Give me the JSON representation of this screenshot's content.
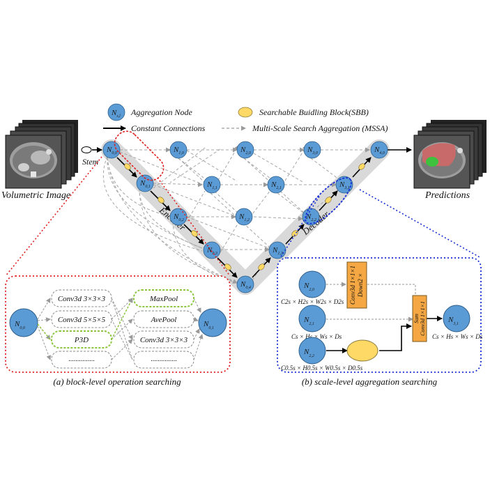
{
  "legend": {
    "aggregation_node": "Aggregation Node",
    "aggregation_node_symbol": "N",
    "aggregation_node_sub": "s,l",
    "sbb": "Searchable Buidling Block(SBB)",
    "constant": "Constant Connections",
    "mssa": "Multi-Scale Search Aggregation (MSSA)"
  },
  "labels": {
    "volumetric_image": "Volumetric Image",
    "predictions": "Predictions",
    "stem": "Stem",
    "encoder": "Encoder",
    "decoder": "Decoder"
  },
  "main_nodes": [
    {
      "id": "n00",
      "sub": "0,0"
    },
    {
      "id": "n01",
      "sub": "0,1"
    },
    {
      "id": "n02",
      "sub": "0,2"
    },
    {
      "id": "n03",
      "sub": "0,3"
    },
    {
      "id": "n04",
      "sub": "0,4"
    },
    {
      "id": "n10",
      "sub": "1,0"
    },
    {
      "id": "n11",
      "sub": "1,1"
    },
    {
      "id": "n12",
      "sub": "1,2"
    },
    {
      "id": "n13",
      "sub": "1,3"
    },
    {
      "id": "n20",
      "sub": "2,0"
    },
    {
      "id": "n21",
      "sub": "2,1"
    },
    {
      "id": "n22",
      "sub": "2,2"
    },
    {
      "id": "n30",
      "sub": "3,0"
    },
    {
      "id": "n31",
      "sub": "3,1"
    },
    {
      "id": "n40",
      "sub": "4,0"
    }
  ],
  "panel_a": {
    "caption": "(a) block-level operation searching",
    "input_node_sub": "0,0",
    "output_node_sub": "0,1",
    "left_ops": [
      "Conv3d 3×3×3",
      "Conv3d 5×5×5",
      "P3D",
      "..............."
    ],
    "right_ops": [
      "MaxPool",
      "AvePool",
      "Conv3d 3×3×3",
      "..............."
    ]
  },
  "panel_b": {
    "caption": "(b) scale-level aggregation searching",
    "nodes": [
      {
        "sub": "2,0",
        "dims": "C2s × H2s × W2s × D2s"
      },
      {
        "sub": "2,1",
        "dims": "Cs × Hs × Ws × Ds"
      },
      {
        "sub": "2,2",
        "dims": "C0.5s × H0.5s × W0.5s × D0.5s"
      }
    ],
    "output_sub": "3,1",
    "output_dims": "Cs × Hs × Ws × Ds",
    "box1_lines": [
      "Conv3d 1×1×1",
      "Down2 ×"
    ],
    "box2_lines": [
      "Sum",
      "Conv3d 1×1×1"
    ]
  },
  "colors": {
    "node": "#5b9bd5",
    "sbb": "#ffd966",
    "orange_box": "#f4a742",
    "red_dash": "#e02020",
    "blue_dash": "#1a2fd6",
    "green_dash": "#8cc63f",
    "path_band": "#d9d9d9"
  }
}
